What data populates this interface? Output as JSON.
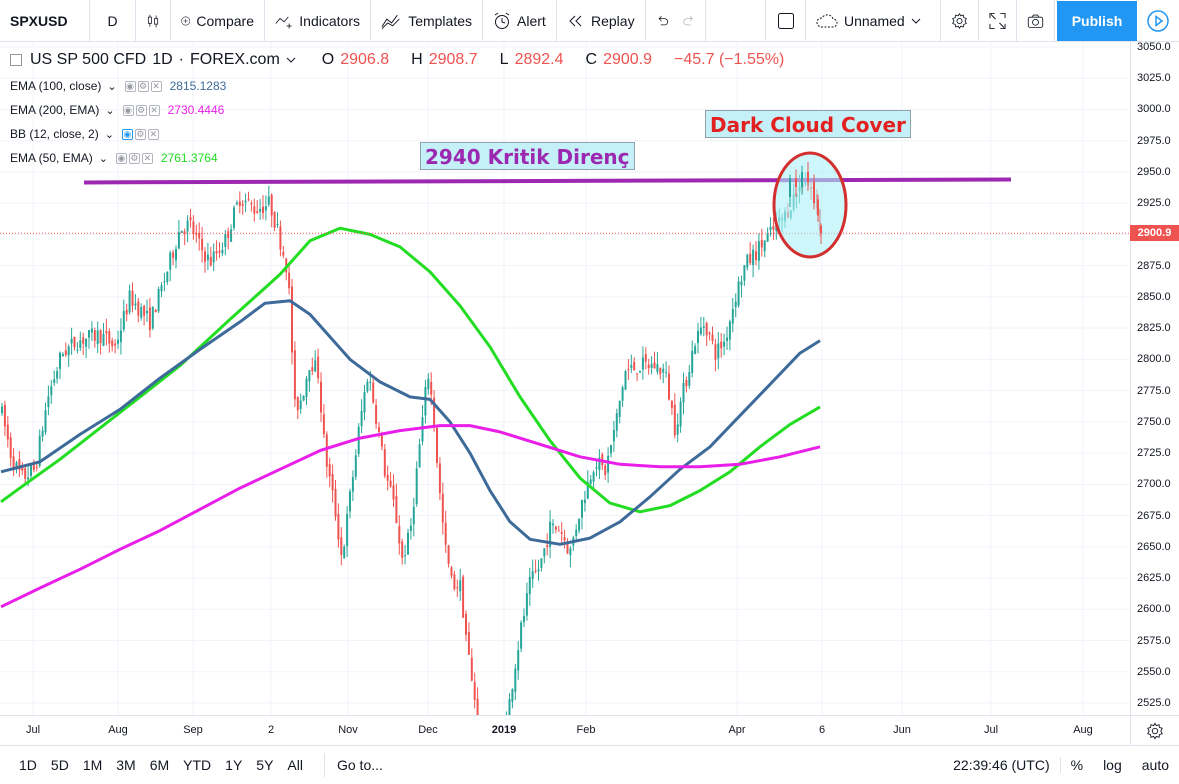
{
  "toolbar": {
    "symbol": "SPXUSD",
    "interval": "D",
    "compare_label": "Compare",
    "indicators_label": "Indicators",
    "templates_label": "Templates",
    "alert_label": "Alert",
    "replay_label": "Replay",
    "layout_name": "Unnamed",
    "publish_label": "Publish"
  },
  "legend": {
    "title": "US SP 500 CFD",
    "interval": "1D",
    "source": "FOREX.com",
    "ohlc": [
      {
        "k": "O",
        "v": "2906.8"
      },
      {
        "k": "H",
        "v": "2908.7"
      },
      {
        "k": "L",
        "v": "2892.4"
      },
      {
        "k": "C",
        "v": "2900.9"
      }
    ],
    "change": "−45.7 (−1.55%)",
    "studies": [
      {
        "label": "EMA (100, close)",
        "value": "2815.1283",
        "color": "#3d6a99"
      },
      {
        "label": "EMA (200, EMA)",
        "value": "2730.4446",
        "color": "#e91ee9"
      },
      {
        "label": "BB (12, close, 2)",
        "value": "",
        "color": "#2196f3"
      },
      {
        "label": "EMA (50, EMA)",
        "value": "2761.3764",
        "color": "#22dd22"
      }
    ]
  },
  "annotations": {
    "resistance": "2940 Kritik Direnç",
    "pattern": "Dark Cloud Cover"
  },
  "price_axis": {
    "ticks": [
      "3050.0",
      "3025.0",
      "3000.0",
      "2975.0",
      "2950.0",
      "2925.0",
      "2900.0",
      "2875.0",
      "2850.0",
      "2825.0",
      "2800.0",
      "2775.0",
      "2750.0",
      "2725.0",
      "2700.0",
      "2675.0",
      "2650.0",
      "2625.0",
      "2600.0",
      "2575.0",
      "2550.0",
      "2525.0"
    ],
    "last_price": "2900.9"
  },
  "time_axis": {
    "labels": [
      "Jul",
      "Aug",
      "Sep",
      "2",
      "Nov",
      "Dec",
      "2019",
      "Feb",
      "Apr",
      "6",
      "Jun",
      "Jul",
      "Aug"
    ]
  },
  "bottom": {
    "ranges": [
      "1D",
      "5D",
      "1M",
      "3M",
      "6M",
      "YTD",
      "1Y",
      "5Y",
      "All"
    ],
    "goto": "Go to...",
    "time": "22:39:46 (UTC)",
    "percent": "%",
    "log": "log",
    "auto": "auto"
  },
  "colors": {
    "up": "#26a69a",
    "down": "#ef5350",
    "ema50": "#22dd22",
    "ema100": "#3d6a99",
    "ema200": "#e91ee9",
    "resistance_line": "#9c27b0",
    "accent": "#2196f3"
  },
  "chart_data": {
    "type": "candlestick",
    "resistance_level": 2944,
    "last_close": 2900.9,
    "y_range": [
      2515,
      3055
    ],
    "series": [
      {
        "name": "EMA (50, EMA)",
        "points": [
          [
            1,
            2686
          ],
          [
            25,
            2700
          ],
          [
            60,
            2720
          ],
          [
            100,
            2745
          ],
          [
            140,
            2770
          ],
          [
            180,
            2795
          ],
          [
            230,
            2832
          ],
          [
            280,
            2868
          ],
          [
            310,
            2895
          ],
          [
            340,
            2905
          ],
          [
            370,
            2900
          ],
          [
            400,
            2890
          ],
          [
            430,
            2870
          ],
          [
            460,
            2843
          ],
          [
            490,
            2810
          ],
          [
            520,
            2770
          ],
          [
            550,
            2735
          ],
          [
            580,
            2705
          ],
          [
            610,
            2685
          ],
          [
            640,
            2678
          ],
          [
            670,
            2683
          ],
          [
            700,
            2695
          ],
          [
            730,
            2710
          ],
          [
            760,
            2730
          ],
          [
            790,
            2748
          ],
          [
            820,
            2762
          ]
        ]
      },
      {
        "name": "EMA (100, close)",
        "points": [
          [
            1,
            2710
          ],
          [
            40,
            2718
          ],
          [
            80,
            2740
          ],
          [
            120,
            2760
          ],
          [
            160,
            2785
          ],
          [
            200,
            2808
          ],
          [
            240,
            2830
          ],
          [
            265,
            2845
          ],
          [
            290,
            2847
          ],
          [
            310,
            2836
          ],
          [
            330,
            2818
          ],
          [
            350,
            2800
          ],
          [
            380,
            2782
          ],
          [
            410,
            2770
          ],
          [
            430,
            2768
          ],
          [
            450,
            2750
          ],
          [
            470,
            2725
          ],
          [
            490,
            2695
          ],
          [
            510,
            2670
          ],
          [
            530,
            2656
          ],
          [
            560,
            2652
          ],
          [
            590,
            2657
          ],
          [
            620,
            2670
          ],
          [
            650,
            2690
          ],
          [
            680,
            2712
          ],
          [
            710,
            2730
          ],
          [
            740,
            2755
          ],
          [
            770,
            2780
          ],
          [
            800,
            2805
          ],
          [
            820,
            2815
          ]
        ]
      },
      {
        "name": "EMA (200, EMA)",
        "points": [
          [
            1,
            2602
          ],
          [
            40,
            2617
          ],
          [
            80,
            2632
          ],
          [
            120,
            2648
          ],
          [
            160,
            2663
          ],
          [
            200,
            2680
          ],
          [
            240,
            2697
          ],
          [
            280,
            2712
          ],
          [
            320,
            2727
          ],
          [
            360,
            2737
          ],
          [
            400,
            2743
          ],
          [
            440,
            2747
          ],
          [
            470,
            2747
          ],
          [
            500,
            2742
          ],
          [
            540,
            2732
          ],
          [
            580,
            2722
          ],
          [
            620,
            2716
          ],
          [
            660,
            2714
          ],
          [
            700,
            2714
          ],
          [
            740,
            2716
          ],
          [
            780,
            2722
          ],
          [
            820,
            2730
          ]
        ]
      }
    ]
  }
}
